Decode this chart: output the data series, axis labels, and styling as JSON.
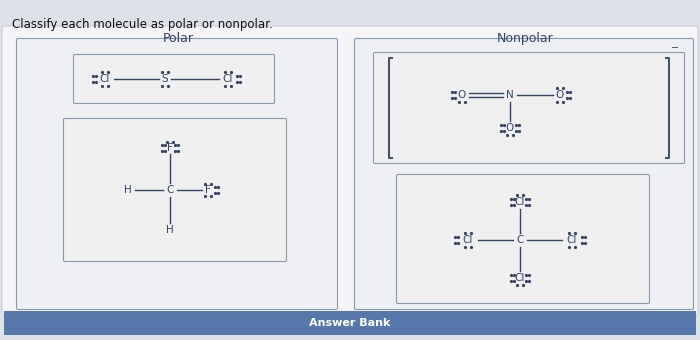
{
  "title": "Classify each molecule as polar or nonpolar.",
  "polar_label": "Polar",
  "nonpolar_label": "Nonpolar",
  "answer_bank": "Answer Bank",
  "outer_bg": "#dde2e8",
  "inner_bg": "#eef0f4",
  "mol_box_bg": "#f0f0f0",
  "mol_box_edge": "#8899aa",
  "large_box_edge": "#8899aa",
  "bracket_color": "#445566",
  "text_color": "#334466",
  "lone_pair_color": "#334466",
  "answer_bar_color": "#5577aa",
  "answer_text_color": "#ffffff",
  "title_color": "#111111"
}
